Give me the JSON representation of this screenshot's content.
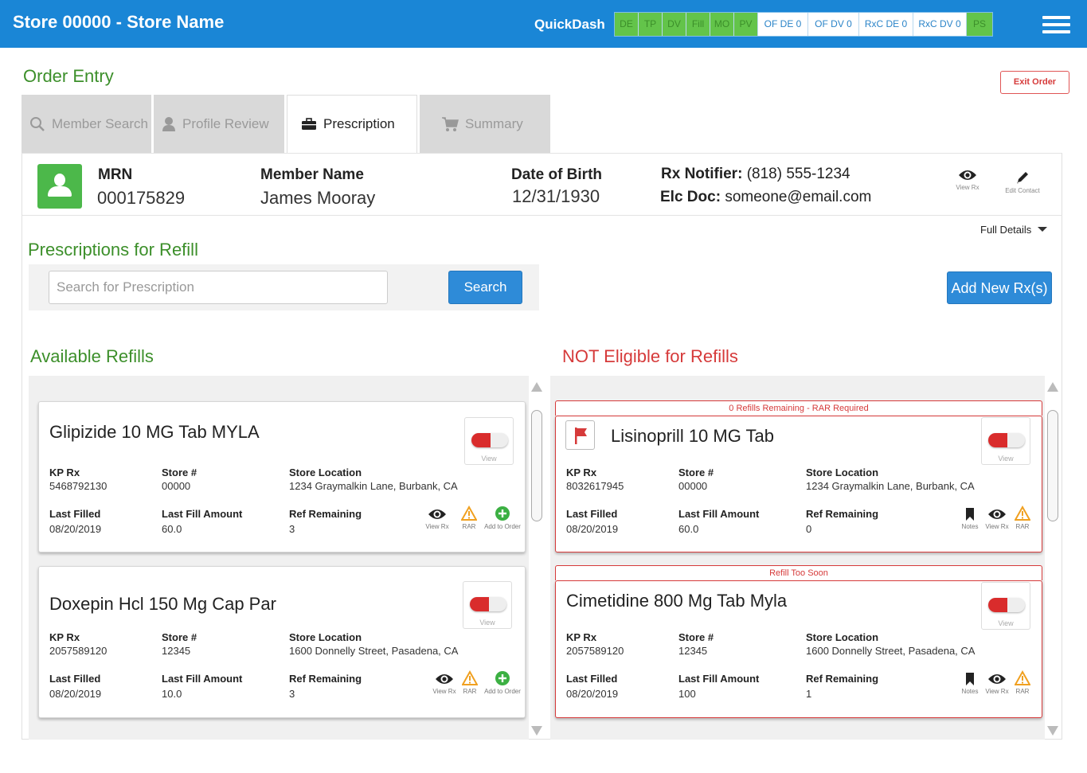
{
  "header": {
    "store_title": "Store 00000 - Store Name",
    "quickdash_label": "QuickDash",
    "quickdash_items": [
      "DE",
      "TP",
      "DV",
      "Fill",
      "MO",
      "PV",
      "OF DE 0",
      "OF DV 0",
      "RxC DE 0",
      "RxC DV 0",
      "PS"
    ]
  },
  "page": {
    "title": "Order Entry",
    "exit_label": "Exit Order"
  },
  "tabs": [
    {
      "label": "Member Search",
      "icon": "search-icon"
    },
    {
      "label": "Profile Review",
      "icon": "user-icon"
    },
    {
      "label": "Prescription",
      "icon": "briefcase-icon"
    },
    {
      "label": "Summary",
      "icon": "cart-icon"
    }
  ],
  "member": {
    "mrn_label": "MRN",
    "mrn": "000175829",
    "name_label": "Member Name",
    "name": "James Mooray",
    "dob_label": "Date of Birth",
    "dob": "12/31/1930",
    "notifier_label": "Rx Notifier:",
    "notifier": "(818) 555-1234",
    "elc_label": "Elc Doc:",
    "elc": "someone@email.com",
    "view_rx_label": "View Rx",
    "edit_contact_label": "Edit Contact"
  },
  "full_details_label": "Full Details",
  "refill_section": {
    "title": "Prescriptions for Refill",
    "search_placeholder": "Search for Prescription",
    "search_button": "Search",
    "add_new_button": "Add New Rx(s)"
  },
  "field_labels": {
    "kp_rx": "KP Rx",
    "store": "Store #",
    "store_location": "Store Location",
    "last_filled": "Last Filled",
    "last_fill_amount": "Last Fill Amount",
    "ref_remaining": "Ref Remaining",
    "pill_view": "View",
    "act_view_rx": "View Rx",
    "act_rar": "RAR",
    "act_add": "Add to Order",
    "act_notes": "Notes"
  },
  "available": {
    "title": "Available Refills",
    "cards": [
      {
        "name": "Glipizide 10 MG Tab MYLA",
        "kp_rx": "5468792130",
        "store": "00000",
        "location": "1234 Graymalkin Lane, Burbank, CA",
        "last_filled": "08/20/2019",
        "amount": "60.0",
        "remaining": "3"
      },
      {
        "name": "Doxepin Hcl 150 Mg Cap Par",
        "kp_rx": "2057589120",
        "store": "12345",
        "location": "1600 Donnelly Street, Pasadena, CA",
        "last_filled": "08/20/2019",
        "amount": "10.0",
        "remaining": "3"
      }
    ]
  },
  "not_eligible": {
    "title": "NOT Eligible for Refills",
    "cards": [
      {
        "banner": "0 Refills Remaining - RAR Required",
        "name": "Lisinoprill 10 MG Tab",
        "kp_rx": "8032617945",
        "store": "00000",
        "location": "1234 Graymalkin Lane, Burbank, CA",
        "last_filled": "08/20/2019",
        "amount": "60.0",
        "remaining": "0"
      },
      {
        "banner": "Refill Too Soon",
        "name": "Cimetidine 800 Mg Tab Myla",
        "kp_rx": "2057589120",
        "store": "12345",
        "location": "1600 Donnelly Street, Pasadena, CA",
        "last_filled": "08/20/2019",
        "amount": "100",
        "remaining": "1"
      }
    ]
  },
  "colors": {
    "header_blue": "#1a86d6",
    "title_green": "#3c8f2a",
    "alert_red": "#d63a3a",
    "button_blue": "#2e8bd8"
  }
}
